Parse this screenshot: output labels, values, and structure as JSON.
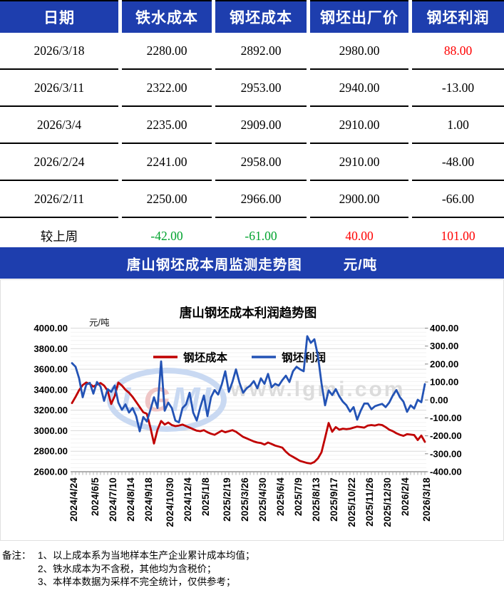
{
  "table": {
    "headers": [
      "日期",
      "铁水成本",
      "钢坯成本",
      "钢坯出厂价",
      "钢坯利润"
    ],
    "rows": [
      {
        "cells": [
          "2026/3/18",
          "2280.00",
          "2892.00",
          "2980.00",
          "88.00"
        ],
        "colors": [
          "black",
          "black",
          "black",
          "black",
          "red"
        ]
      },
      {
        "cells": [
          "2026/3/11",
          "2322.00",
          "2953.00",
          "2940.00",
          "-13.00"
        ],
        "colors": [
          "black",
          "black",
          "black",
          "black",
          "black"
        ]
      },
      {
        "cells": [
          "2026/3/4",
          "2235.00",
          "2909.00",
          "2910.00",
          "1.00"
        ],
        "colors": [
          "black",
          "black",
          "black",
          "black",
          "black"
        ]
      },
      {
        "cells": [
          "2026/2/24",
          "2241.00",
          "2958.00",
          "2910.00",
          "-48.00"
        ],
        "colors": [
          "black",
          "black",
          "black",
          "black",
          "black"
        ]
      },
      {
        "cells": [
          "2026/2/11",
          "2250.00",
          "2966.00",
          "2900.00",
          "-66.00"
        ],
        "colors": [
          "black",
          "black",
          "black",
          "black",
          "black"
        ]
      },
      {
        "cells": [
          "较上周",
          "-42.00",
          "-61.00",
          "40.00",
          "101.00"
        ],
        "colors": [
          "black",
          "green",
          "green",
          "red",
          "red"
        ]
      }
    ]
  },
  "banner": {
    "title": "唐山钢坯成本周监测走势图",
    "unit": "元/吨"
  },
  "chart_data": {
    "type": "line",
    "title": "唐山钢坯成本利润趋势图",
    "unit_label": "元/吨",
    "legend_position": "inside-top",
    "grid": true,
    "left_axis": {
      "min": 2600,
      "max": 4000,
      "step": 200,
      "tick_labels": [
        "4000.00",
        "3800.00",
        "3600.00",
        "3400.00",
        "3200.00",
        "3000.00",
        "2800.00",
        "2600.00"
      ]
    },
    "right_axis": {
      "min": -400,
      "max": 400,
      "step": 100,
      "tick_labels": [
        "400.00",
        "300.00",
        "200.00",
        "100.00",
        "0.00",
        "-100.00",
        "-200.00",
        "-300.00",
        "-400.00"
      ]
    },
    "x_tick_labels": [
      "2024/4/24",
      "2024/6/5",
      "2024/7/10",
      "2024/8/14",
      "2024/9/18",
      "2024/10/30",
      "2024/12/4",
      "2025/1/8",
      "2025/2/19",
      "2025/3/26",
      "2025/4/30",
      "2025/6/4",
      "2025/7/9",
      "2025/8/13",
      "2025/9/17",
      "2025/10/22",
      "2025/11/26",
      "2025/12/30",
      "2026/2/4",
      "2026/3/18"
    ],
    "x_tick_indices": [
      0,
      6,
      11,
      16,
      21,
      27,
      32,
      37,
      43,
      48,
      53,
      58,
      63,
      68,
      73,
      78,
      83,
      88,
      93,
      99
    ],
    "series": [
      {
        "name": "钢坯成本",
        "axis": "left",
        "color": "#C00000",
        "values": [
          3270,
          3330,
          3395,
          3445,
          3470,
          3455,
          3430,
          3450,
          3465,
          3440,
          3390,
          3260,
          3340,
          3470,
          3440,
          3400,
          3370,
          3330,
          3280,
          3230,
          3180,
          3165,
          3030,
          2875,
          3010,
          3095,
          3060,
          3080,
          3055,
          3045,
          3050,
          3060,
          3045,
          3030,
          3015,
          3000,
          2995,
          3005,
          2985,
          2970,
          2960,
          2980,
          3000,
          2985,
          2995,
          3005,
          2990,
          2965,
          2940,
          2925,
          2910,
          2895,
          2885,
          2880,
          2865,
          2885,
          2870,
          2855,
          2845,
          2835,
          2795,
          2765,
          2745,
          2725,
          2705,
          2695,
          2685,
          2680,
          2695,
          2730,
          2790,
          2930,
          3075,
          2990,
          3035,
          3010,
          3020,
          3015,
          3020,
          3030,
          3040,
          3035,
          3030,
          3050,
          3055,
          3050,
          3060,
          3055,
          3035,
          3010,
          2995,
          2975,
          2960,
          2950,
          2966,
          2962,
          2958,
          2909,
          2953,
          2892
        ]
      },
      {
        "name": "钢坯利润",
        "axis": "right",
        "color": "#2353B5",
        "values": [
          205,
          185,
          120,
          15,
          85,
          95,
          35,
          100,
          75,
          -5,
          60,
          45,
          80,
          -15,
          -55,
          -25,
          -70,
          -45,
          -90,
          -175,
          -95,
          -120,
          -55,
          15,
          -45,
          215,
          -60,
          -15,
          -45,
          -115,
          -125,
          -45,
          -25,
          40,
          -70,
          -115,
          -40,
          25,
          -90,
          15,
          55,
          30,
          85,
          160,
          45,
          100,
          170,
          95,
          40,
          65,
          80,
          105,
          65,
          120,
          90,
          145,
          70,
          90,
          80,
          110,
          135,
          100,
          160,
          185,
          170,
          160,
          355,
          318,
          338,
          246,
          93,
          -30,
          53,
          27,
          60,
          20,
          -10,
          -30,
          -65,
          -40,
          -110,
          -60,
          -20,
          -20,
          -52,
          -35,
          -28,
          -22,
          -40,
          -15,
          25,
          55,
          15,
          -10,
          -66,
          -30,
          -48,
          1,
          -13,
          88
        ]
      }
    ],
    "watermark": {
      "logo_text": "LGMI",
      "site_text": "www.lgmi.com"
    }
  },
  "notes": {
    "label": "备注：",
    "items": [
      "1、以上成本系为当地样本生产企业累计成本均值；",
      "2、铁水成本为不含税，其他均为含税价；",
      "3、本样本数据为采样不完全统计，仅供参考；"
    ]
  },
  "colors": {
    "header_bg": "#1E3EAE",
    "banner_bg": "#1E3EAE",
    "black": "#000000",
    "red": "#FF0000",
    "green": "#00A32E",
    "grid_major": "#DADADA",
    "grid_minor": "#F2F2F2",
    "axis": "#808080",
    "tick": "#ABABAB",
    "watermark_logo": "#C9D9F2",
    "watermark_logo_accent": "#EFC6C6",
    "watermark_text": "#DCDCDC"
  }
}
